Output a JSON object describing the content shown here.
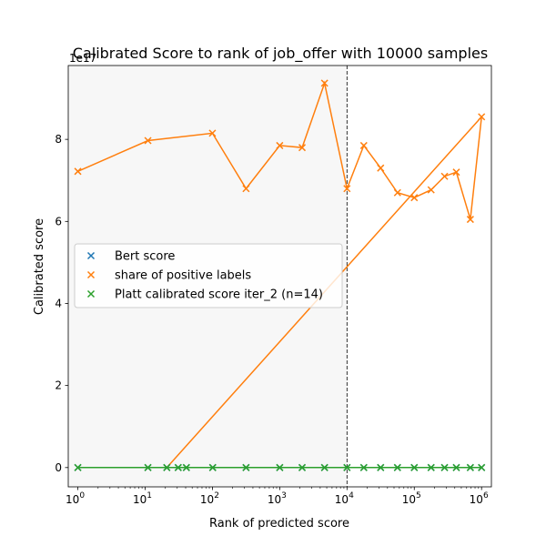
{
  "chart_data": {
    "type": "scatter",
    "title": "Calibrated Score to rank of job_offer with 10000 samples",
    "xlabel": "Rank of predicted score",
    "ylabel": "Calibrated score",
    "y_offset_text": "1e17",
    "xscale": "log",
    "xlim": [
      0.72,
      1400000
    ],
    "ylim": [
      -0.47,
      9.8
    ],
    "x_ticks": [
      1,
      10,
      100,
      1000,
      10000,
      100000,
      1000000
    ],
    "x_tick_labels": [
      {
        "base": "10",
        "exp": "0"
      },
      {
        "base": "10",
        "exp": "1"
      },
      {
        "base": "10",
        "exp": "2"
      },
      {
        "base": "10",
        "exp": "3"
      },
      {
        "base": "10",
        "exp": "4"
      },
      {
        "base": "10",
        "exp": "5"
      },
      {
        "base": "10",
        "exp": "6"
      }
    ],
    "y_ticks": [
      0,
      2,
      4,
      6,
      8
    ],
    "y_tick_labels": [
      "0",
      "2",
      "4",
      "6",
      "8"
    ],
    "threshold_x": 10000,
    "shaded_region": [
      0.72,
      10000
    ],
    "legend_position": "center-left",
    "colors": {
      "bert": "#1f77b4",
      "share": "#ff7f0e",
      "platt": "#2ca02c",
      "shade": "#f7f7f7"
    },
    "series": [
      {
        "name": "Bert score",
        "marker": "x",
        "x": [
          1,
          11,
          21,
          31,
          41,
          101,
          316,
          1001,
          2154,
          4642,
          10001,
          17783,
          31623,
          56234,
          100001,
          177828,
          281838,
          421697,
          681292,
          1000000
        ],
        "y": [
          0,
          0,
          0,
          0,
          0,
          0,
          0,
          0,
          0,
          0,
          0,
          0,
          0,
          0,
          0,
          0,
          0,
          0,
          0,
          0
        ]
      },
      {
        "name": "share of positive labels",
        "marker": "x",
        "x": [
          1,
          11,
          100,
          316,
          1000,
          2154,
          4642,
          10000,
          17783,
          31623,
          56234,
          100000,
          177828,
          281838,
          421697,
          681292,
          1000000
        ],
        "y": [
          7.22,
          7.97,
          8.15,
          6.8,
          7.85,
          7.8,
          9.37,
          6.8,
          7.85,
          7.3,
          6.7,
          6.58,
          6.77,
          7.1,
          7.2,
          6.05,
          8.55
        ]
      },
      {
        "name": "Platt calibrated score iter_2 (n=14)",
        "marker": "x",
        "x": [
          1,
          11,
          21,
          31,
          41,
          101,
          316,
          1001,
          2154,
          4642,
          10001,
          17783,
          31623,
          56234,
          100001,
          177828,
          281838,
          421697,
          681292,
          1000000
        ],
        "y": [
          0,
          0,
          0,
          0,
          0,
          0,
          0,
          0,
          0,
          0,
          0,
          0,
          0,
          0,
          0,
          0,
          0,
          0,
          0,
          0
        ]
      }
    ],
    "extra_lines": [
      {
        "color": "share",
        "x": [
          21,
          1000000
        ],
        "y": [
          0,
          8.55
        ]
      }
    ]
  }
}
